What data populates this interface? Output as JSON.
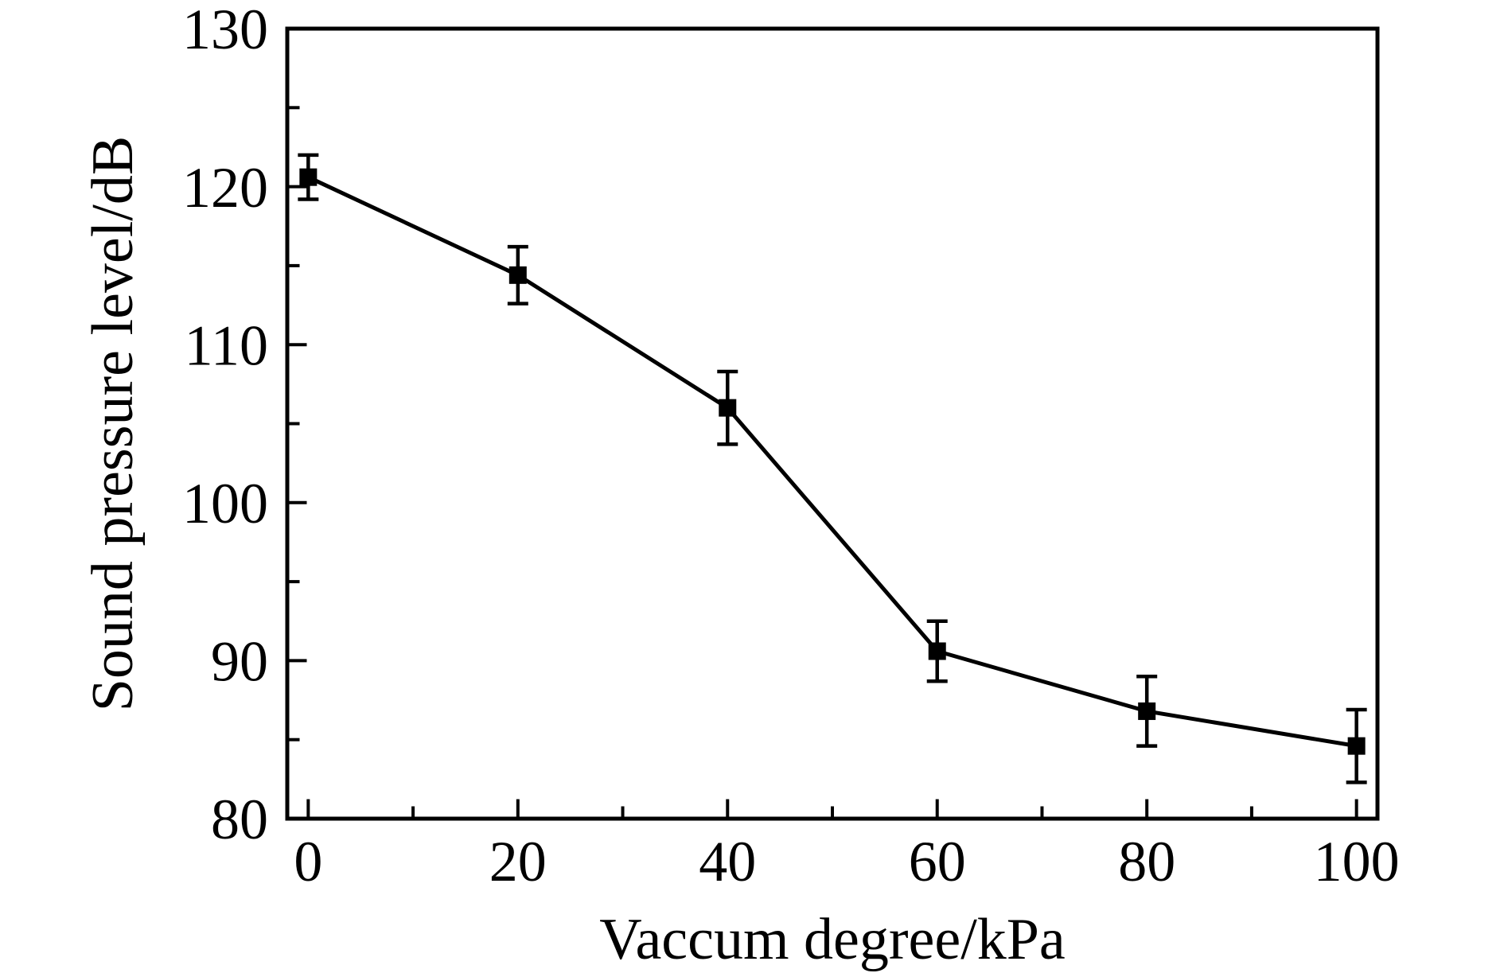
{
  "chart_data": {
    "type": "line",
    "title": "",
    "xlabel": "Vaccum degree/kPa",
    "ylabel": "Sound pressure level/dB",
    "x": [
      0,
      20,
      40,
      60,
      80,
      100
    ],
    "y": [
      120.6,
      114.4,
      106.0,
      90.6,
      86.8,
      84.6
    ],
    "y_err": [
      1.4,
      1.8,
      2.3,
      1.9,
      2.2,
      2.3
    ],
    "xlim": [
      -2,
      102
    ],
    "ylim": [
      80,
      130
    ],
    "x_major_ticks": [
      0,
      20,
      40,
      60,
      80,
      100
    ],
    "x_minor_ticks": [
      10,
      30,
      50,
      70,
      90
    ],
    "y_major_ticks": [
      80,
      90,
      100,
      110,
      120,
      130
    ],
    "y_minor_ticks": [
      85,
      95,
      105,
      115,
      125
    ],
    "marker": "filled-square",
    "series_color": "#000000",
    "background_color": "#ffffff",
    "grid": false,
    "legend": null
  }
}
